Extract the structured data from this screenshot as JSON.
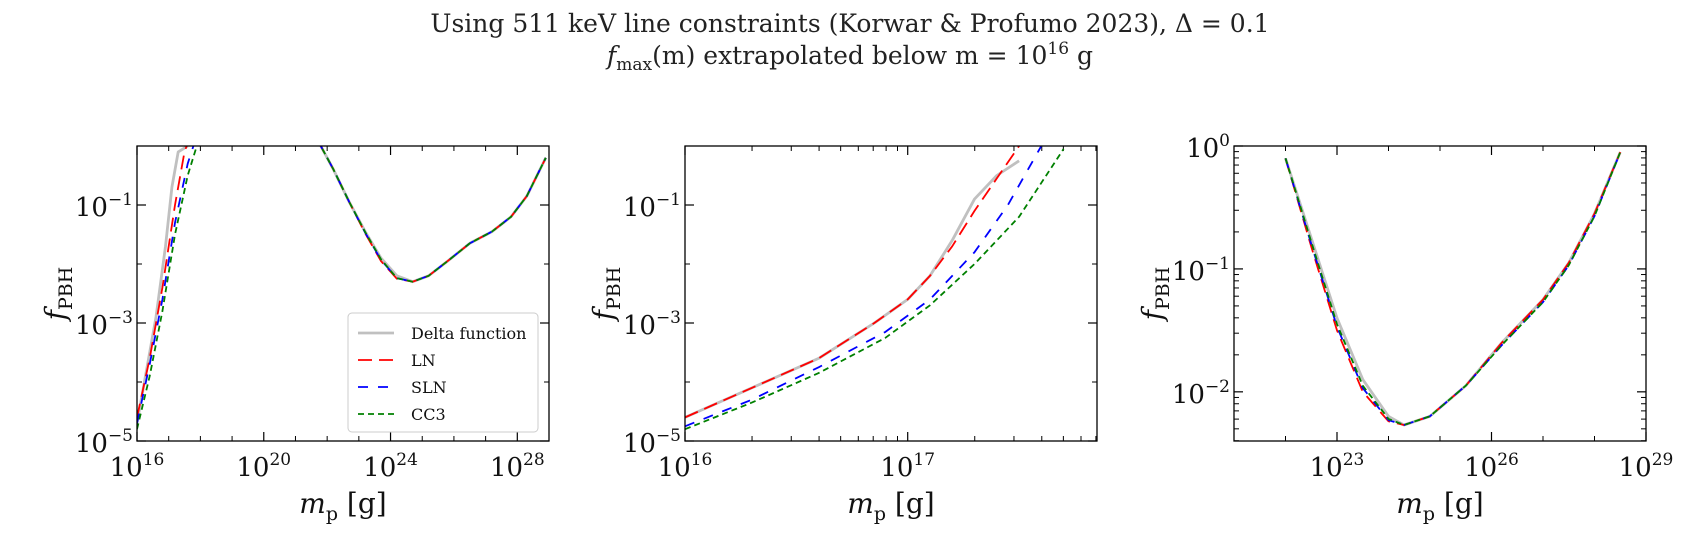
{
  "figure": {
    "title_line1": "Using 511 keV line constraints (Korwar & Profumo 2023), Δ = 0.1",
    "title_line2_pre": "f",
    "title_line2_sub": "max",
    "title_line2_rest": "(m) extrapolated below m = 10",
    "title_line2_exp": "16",
    "title_line2_unit": " g"
  },
  "styles": {
    "Delta function": {
      "color": "#c0c0c0",
      "dash": "none"
    },
    "LN": {
      "color": "#ff0000",
      "dash": "14,7"
    },
    "SLN": {
      "color": "#0000ff",
      "dash": "10,10"
    },
    "CC3": {
      "color": "#008000",
      "dash": "6,4"
    }
  },
  "chart_data": [
    {
      "type": "line",
      "xscale": "log",
      "yscale": "log",
      "xlim_log10": [
        16,
        29
      ],
      "ylim_log10": [
        -5,
        0
      ],
      "xticks_log10": [
        16,
        20,
        24,
        28
      ],
      "yticks_log10": [
        -5,
        -3,
        -1
      ],
      "xlabel": "m_p [g]",
      "ylabel": "f_PBH",
      "legend": {
        "placement": "lower-right",
        "entries": [
          "Delta function",
          "LN",
          "SLN",
          "CC3"
        ]
      },
      "series": [
        {
          "name": "Delta function",
          "x_log10": [
            16.0,
            16.3,
            16.6,
            16.9,
            17.1,
            17.3,
            17.6
          ],
          "y_log10": [
            -4.7,
            -3.8,
            -2.9,
            -1.7,
            -0.7,
            -0.1,
            0.0
          ]
        },
        {
          "name": "LN",
          "x_log10": [
            16.0,
            16.4,
            16.8,
            17.2,
            17.5,
            17.7
          ],
          "y_log10": [
            -4.6,
            -3.6,
            -2.4,
            -1.0,
            -0.1,
            0.2
          ]
        },
        {
          "name": "SLN",
          "x_log10": [
            16.0,
            16.4,
            16.8,
            17.2,
            17.6,
            17.9
          ],
          "y_log10": [
            -4.7,
            -3.7,
            -2.6,
            -1.3,
            -0.3,
            0.2
          ]
        },
        {
          "name": "CC3",
          "x_log10": [
            16.0,
            16.4,
            16.8,
            17.2,
            17.6,
            18.0
          ],
          "y_log10": [
            -4.8,
            -3.9,
            -2.8,
            -1.5,
            -0.5,
            0.2
          ]
        },
        {
          "name": "Delta function",
          "x_log10": [
            21.7,
            22.2,
            22.7,
            23.2,
            23.7,
            24.2,
            24.7,
            25.2,
            25.8,
            26.5,
            27.2,
            27.8,
            28.3,
            28.9
          ],
          "y_log10": [
            0.1,
            -0.4,
            -0.95,
            -1.45,
            -1.9,
            -2.2,
            -2.3,
            -2.2,
            -1.95,
            -1.65,
            -1.45,
            -1.2,
            -0.85,
            -0.2
          ]
        },
        {
          "name": "LN",
          "x_log10": [
            21.7,
            22.2,
            22.7,
            23.2,
            23.7,
            24.2,
            24.7,
            25.2,
            25.8,
            26.5,
            27.2,
            27.8,
            28.3,
            28.9
          ],
          "y_log10": [
            0.1,
            -0.4,
            -0.95,
            -1.48,
            -1.95,
            -2.25,
            -2.3,
            -2.2,
            -1.95,
            -1.65,
            -1.45,
            -1.2,
            -0.85,
            -0.2
          ]
        },
        {
          "name": "SLN",
          "x_log10": [
            21.7,
            22.2,
            22.7,
            23.2,
            23.7,
            24.2,
            24.7,
            25.2,
            25.8,
            26.5,
            27.2,
            27.8,
            28.3,
            28.9
          ],
          "y_log10": [
            0.1,
            -0.4,
            -0.95,
            -1.47,
            -1.93,
            -2.24,
            -2.3,
            -2.2,
            -1.95,
            -1.65,
            -1.45,
            -1.2,
            -0.85,
            -0.2
          ]
        },
        {
          "name": "CC3",
          "x_log10": [
            21.7,
            22.2,
            22.7,
            23.2,
            23.7,
            24.2,
            24.7,
            25.2,
            25.8,
            26.5,
            27.2,
            27.8,
            28.3,
            28.9
          ],
          "y_log10": [
            0.1,
            -0.4,
            -0.95,
            -1.46,
            -1.92,
            -2.24,
            -2.3,
            -2.2,
            -1.95,
            -1.65,
            -1.45,
            -1.2,
            -0.85,
            -0.2
          ]
        }
      ]
    },
    {
      "type": "line",
      "xscale": "log",
      "yscale": "log",
      "xlim_log10": [
        16,
        17.85
      ],
      "ylim_log10": [
        -5,
        0
      ],
      "xticks_log10": [
        16,
        17
      ],
      "yticks_log10": [
        -5,
        -3,
        -1
      ],
      "xlabel": "m_p [g]",
      "ylabel": "f_PBH",
      "series": [
        {
          "name": "Delta function",
          "x_log10": [
            16.0,
            16.3,
            16.6,
            16.85,
            17.0,
            17.1,
            17.2,
            17.3,
            17.4,
            17.5
          ],
          "y_log10": [
            -4.6,
            -4.1,
            -3.6,
            -3.0,
            -2.6,
            -2.2,
            -1.6,
            -0.9,
            -0.5,
            -0.25
          ]
        },
        {
          "name": "LN",
          "x_log10": [
            16.0,
            16.3,
            16.6,
            16.85,
            17.0,
            17.1,
            17.2,
            17.3,
            17.4,
            17.5
          ],
          "y_log10": [
            -4.6,
            -4.1,
            -3.6,
            -3.0,
            -2.6,
            -2.2,
            -1.7,
            -1.1,
            -0.55,
            0.0
          ]
        },
        {
          "name": "SLN",
          "x_log10": [
            16.0,
            16.3,
            16.6,
            16.9,
            17.1,
            17.3,
            17.45,
            17.6
          ],
          "y_log10": [
            -4.75,
            -4.3,
            -3.75,
            -3.15,
            -2.6,
            -1.8,
            -1.0,
            0.0
          ]
        },
        {
          "name": "CC3",
          "x_log10": [
            16.0,
            16.3,
            16.6,
            16.9,
            17.1,
            17.3,
            17.5,
            17.7
          ],
          "y_log10": [
            -4.8,
            -4.35,
            -3.85,
            -3.25,
            -2.7,
            -2.0,
            -1.2,
            -0.05
          ]
        }
      ]
    },
    {
      "type": "line",
      "xscale": "log",
      "yscale": "log",
      "xlim_log10": [
        21.0,
        29.0
      ],
      "ylim_log10": [
        -2.4,
        0
      ],
      "xticks_log10": [
        23,
        26,
        29
      ],
      "yticks_log10": [
        -2,
        -1,
        0
      ],
      "xlabel": "m_p [g]",
      "ylabel": "f_PBH",
      "series": [
        {
          "name": "Delta function",
          "x_log10": [
            22.0,
            22.5,
            23.0,
            23.5,
            24.0,
            24.3,
            24.8,
            25.5,
            26.2,
            27.0,
            27.5,
            28.0,
            28.5
          ],
          "y_log10": [
            -0.1,
            -0.75,
            -1.4,
            -1.9,
            -2.2,
            -2.27,
            -2.2,
            -1.95,
            -1.6,
            -1.25,
            -0.95,
            -0.55,
            -0.05
          ]
        },
        {
          "name": "LN",
          "x_log10": [
            22.0,
            22.5,
            23.0,
            23.5,
            24.0,
            24.3,
            24.8,
            25.5,
            26.2,
            27.0,
            27.5,
            28.0,
            28.5
          ],
          "y_log10": [
            -0.1,
            -0.82,
            -1.5,
            -2.0,
            -2.24,
            -2.27,
            -2.2,
            -1.95,
            -1.6,
            -1.25,
            -0.95,
            -0.55,
            -0.05
          ]
        },
        {
          "name": "SLN",
          "x_log10": [
            22.0,
            22.5,
            23.0,
            23.5,
            24.0,
            24.3,
            24.8,
            25.5,
            26.2,
            27.0,
            27.5,
            28.0,
            28.5
          ],
          "y_log10": [
            -0.1,
            -0.8,
            -1.47,
            -1.97,
            -2.23,
            -2.27,
            -2.2,
            -1.95,
            -1.62,
            -1.27,
            -0.97,
            -0.57,
            -0.05
          ]
        },
        {
          "name": "CC3",
          "x_log10": [
            22.0,
            22.5,
            23.0,
            23.5,
            24.0,
            24.3,
            24.8,
            25.5,
            26.2,
            27.0,
            27.5,
            28.0,
            28.5
          ],
          "y_log10": [
            -0.1,
            -0.78,
            -1.45,
            -1.95,
            -2.22,
            -2.27,
            -2.2,
            -1.95,
            -1.62,
            -1.27,
            -0.97,
            -0.57,
            -0.05
          ]
        }
      ]
    }
  ]
}
